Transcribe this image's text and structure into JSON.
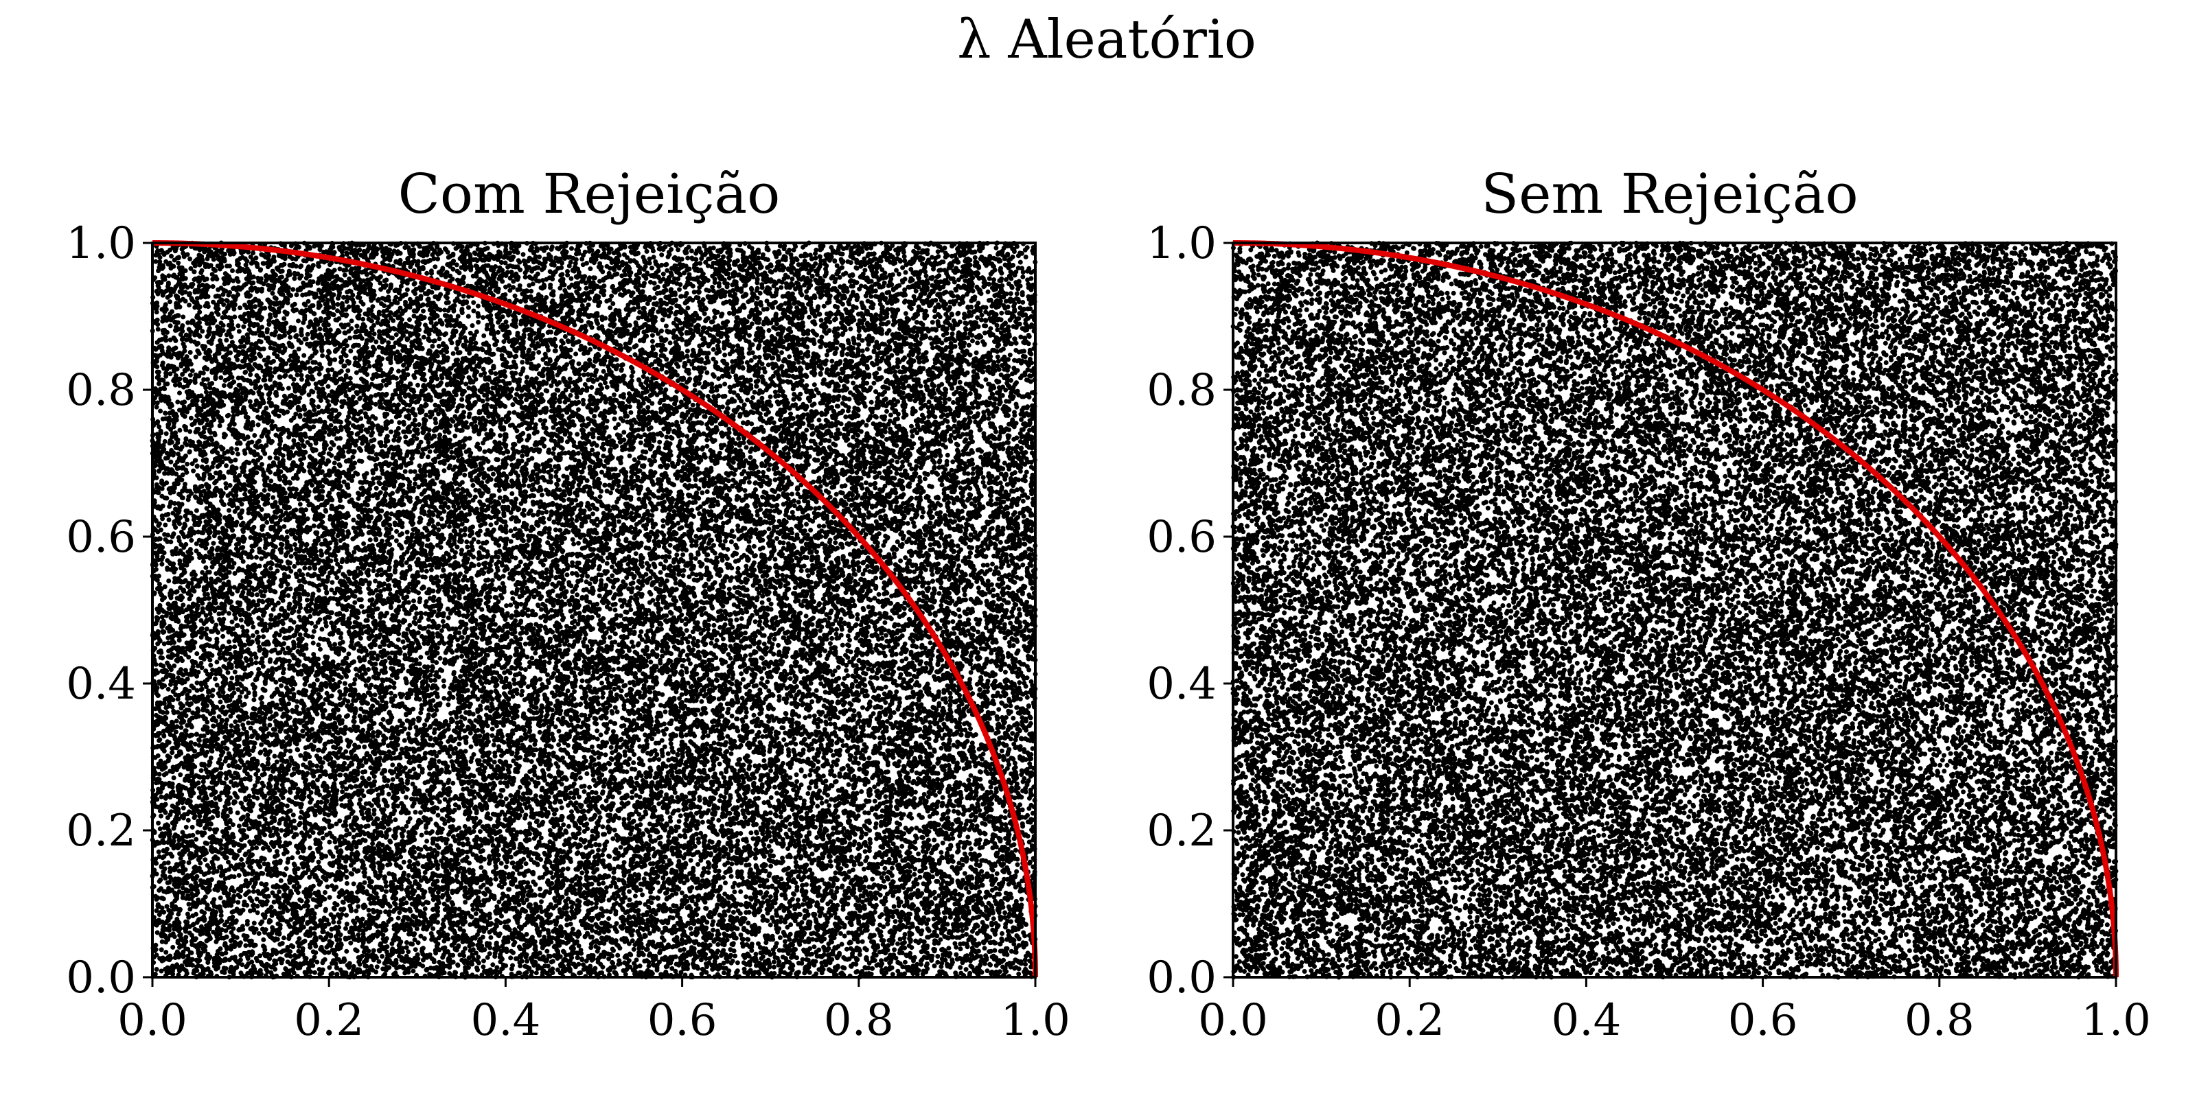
{
  "figure": {
    "suptitle": "λ Aleatório"
  },
  "chart_data": [
    {
      "type": "scatter",
      "title": "Com Rejeição",
      "xlabel": "",
      "ylabel": "",
      "xlim": [
        0.0,
        1.0
      ],
      "ylim": [
        0.0,
        1.0
      ],
      "x_ticks": [
        "0.0",
        "0.2",
        "0.4",
        "0.6",
        "0.8",
        "1.0"
      ],
      "y_ticks": [
        "0.0",
        "0.2",
        "0.4",
        "0.6",
        "0.8",
        "1.0"
      ],
      "grid": false,
      "series": [
        {
          "kind": "points",
          "color": "#000000",
          "distribution": "uniform random on unit square",
          "approx_count": 40000
        },
        {
          "kind": "curve",
          "color": "#e00000",
          "equation": "x^2 + y^2 = 1",
          "x_range": [
            0.0,
            1.0
          ]
        }
      ]
    },
    {
      "type": "scatter",
      "title": "Sem Rejeição",
      "xlabel": "",
      "ylabel": "",
      "xlim": [
        0.0,
        1.0
      ],
      "ylim": [
        0.0,
        1.0
      ],
      "x_ticks": [
        "0.0",
        "0.2",
        "0.4",
        "0.6",
        "0.8",
        "1.0"
      ],
      "y_ticks": [
        "0.0",
        "0.2",
        "0.4",
        "0.6",
        "0.8",
        "1.0"
      ],
      "grid": false,
      "series": [
        {
          "kind": "points",
          "color": "#000000",
          "distribution": "uniform random on unit square",
          "approx_count": 40000
        },
        {
          "kind": "curve",
          "color": "#e00000",
          "equation": "x^2 + y^2 = 1",
          "x_range": [
            0.0,
            1.0
          ]
        }
      ]
    }
  ]
}
